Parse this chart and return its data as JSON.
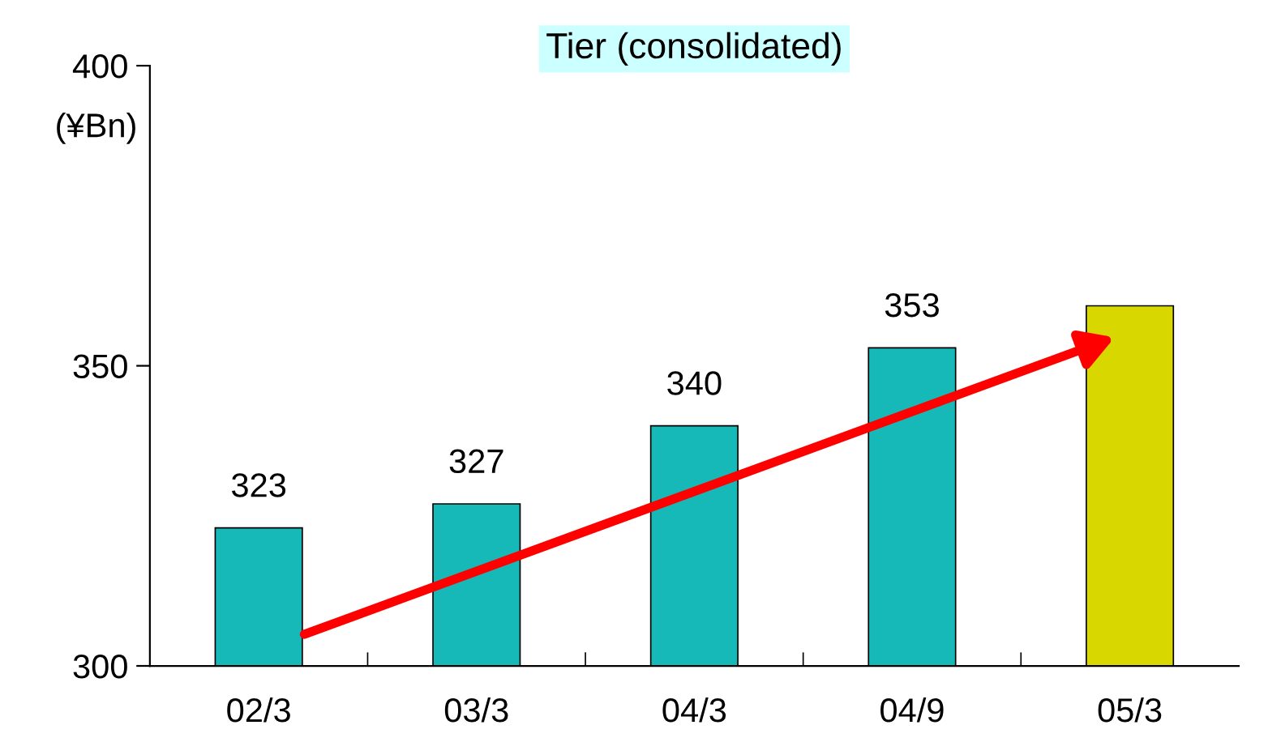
{
  "chart_data": {
    "type": "bar",
    "title": "Tier (consolidated)",
    "ylabel": "(¥Bn)",
    "categories": [
      "02/3",
      "03/3",
      "04/3",
      "04/9",
      "05/3"
    ],
    "series": [
      {
        "type": "bar",
        "values": [
          323,
          327,
          340,
          353,
          360
        ],
        "colors": [
          "#17b8b8",
          "#17b8b8",
          "#17b8b8",
          "#17b8b8",
          "#d8d800"
        ],
        "value_labels": [
          "323",
          "327",
          "340",
          "353",
          null
        ]
      }
    ],
    "ylim": [
      300,
      400
    ],
    "yticks": [
      300,
      350,
      400
    ],
    "grid": false,
    "legend": false
  }
}
